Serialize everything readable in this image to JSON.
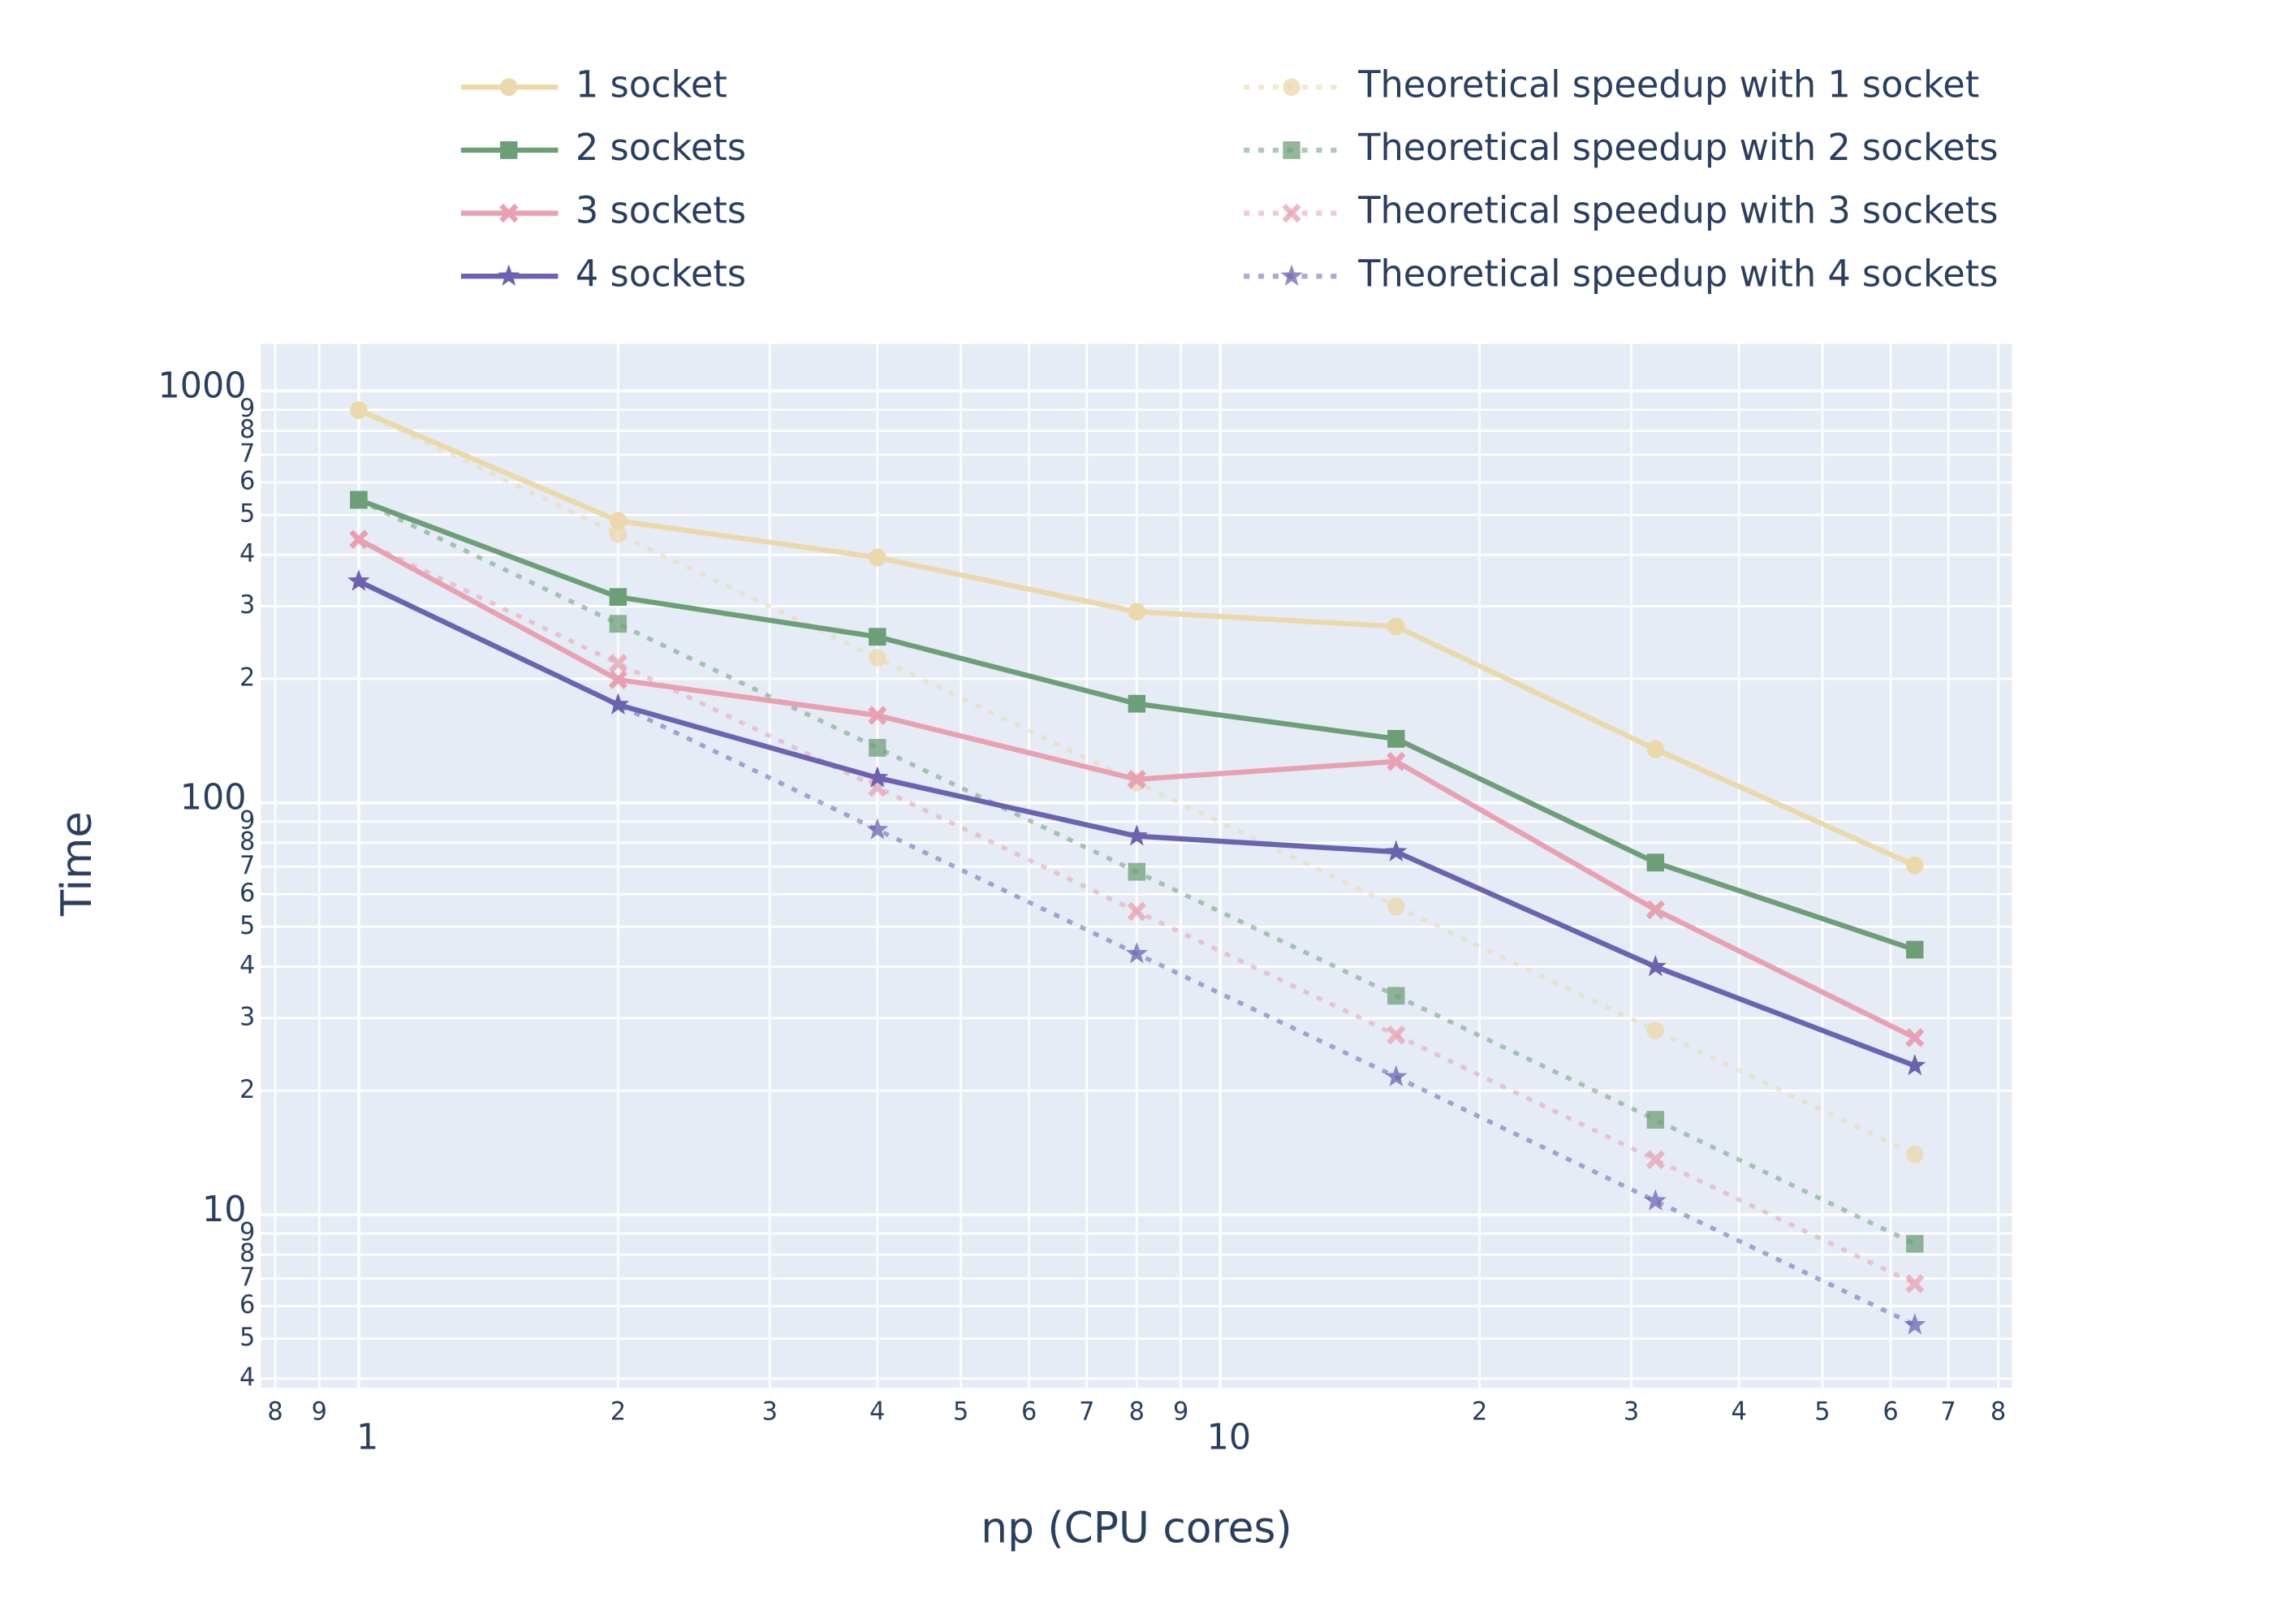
{
  "chart_data": {
    "type": "line",
    "x_label": "np (CPU cores)",
    "y_label": "Time",
    "xscale": "log",
    "yscale": "log",
    "grid": true,
    "legend": "top",
    "x": [
      1,
      2,
      4,
      8,
      16,
      32,
      64
    ],
    "xlim": [
      0.77,
      83
    ],
    "ylim": [
      3.8,
      1300
    ],
    "xticks": [
      {
        "value": 0.8,
        "label": "8"
      },
      {
        "value": 0.9,
        "label": "9"
      },
      1,
      {
        "value": 2,
        "label": "2"
      },
      {
        "value": 3,
        "label": "3"
      },
      {
        "value": 4,
        "label": "4"
      },
      {
        "value": 5,
        "label": "5"
      },
      {
        "value": 6,
        "label": "6"
      },
      {
        "value": 7,
        "label": "7"
      },
      {
        "value": 8,
        "label": "8"
      },
      {
        "value": 9,
        "label": "9"
      },
      10,
      {
        "value": 20,
        "label": "2"
      },
      {
        "value": 30,
        "label": "3"
      },
      {
        "value": 40,
        "label": "4"
      },
      {
        "value": 50,
        "label": "5"
      },
      {
        "value": 60,
        "label": "6"
      },
      {
        "value": 70,
        "label": "7"
      },
      {
        "value": 80,
        "label": "8"
      }
    ],
    "yticks": [
      4,
      5,
      6,
      7,
      8,
      9,
      10,
      {
        "value": 20,
        "label": "2"
      },
      {
        "value": 30,
        "label": "3"
      },
      {
        "value": 40,
        "label": "4"
      },
      {
        "value": 50,
        "label": "5"
      },
      {
        "value": 60,
        "label": "6"
      },
      {
        "value": 70,
        "label": "7"
      },
      {
        "value": 80,
        "label": "8"
      },
      {
        "value": 90,
        "label": "9"
      },
      100,
      {
        "value": 200,
        "label": "2"
      },
      {
        "value": 300,
        "label": "3"
      },
      {
        "value": 400,
        "label": "4"
      },
      {
        "value": 500,
        "label": "5"
      },
      {
        "value": 600,
        "label": "6"
      },
      {
        "value": 700,
        "label": "7"
      },
      {
        "value": 800,
        "label": "8"
      },
      {
        "value": 900,
        "label": "9"
      },
      1000
    ],
    "series": [
      {
        "name": "1 socket",
        "color": "#ebd8ab",
        "marker": "circle",
        "dash": false,
        "values": [
          898,
          484,
          394,
          291,
          268,
          135,
          70.5
        ]
      },
      {
        "name": "2 sockets",
        "color": "#6d9f77",
        "marker": "square",
        "dash": false,
        "values": [
          544,
          316,
          253,
          174,
          143,
          71.6,
          44
        ]
      },
      {
        "name": "3 sockets",
        "color": "#e8a1b1",
        "marker": "x",
        "dash": false,
        "values": [
          436,
          199,
          163,
          114,
          126,
          55,
          26.9
        ]
      },
      {
        "name": "4 sockets",
        "color": "#6c63b0",
        "marker": "star",
        "dash": false,
        "values": [
          345,
          173,
          115,
          83,
          76,
          40,
          23
        ]
      },
      {
        "name": "Theoretical speedup with 1 socket",
        "color": "#ebd8ab",
        "marker": "circle",
        "dash": true,
        "values": [
          898,
          449,
          225,
          112,
          56,
          28,
          14
        ]
      },
      {
        "name": "Theoretical speedup with 2 sockets",
        "color": "#6d9f77",
        "marker": "square",
        "dash": true,
        "values": [
          544,
          272,
          136,
          68,
          34,
          17,
          8.5
        ]
      },
      {
        "name": "Theoretical speedup with 3 sockets",
        "color": "#e8a1b1",
        "marker": "x",
        "dash": true,
        "values": [
          436,
          218,
          109,
          54.5,
          27.3,
          13.6,
          6.8
        ]
      },
      {
        "name": "Theoretical speedup with 4 sockets",
        "color": "#6c63b0",
        "marker": "star",
        "dash": true,
        "values": [
          345,
          173,
          86,
          43,
          21.6,
          10.8,
          5.4
        ]
      }
    ]
  }
}
